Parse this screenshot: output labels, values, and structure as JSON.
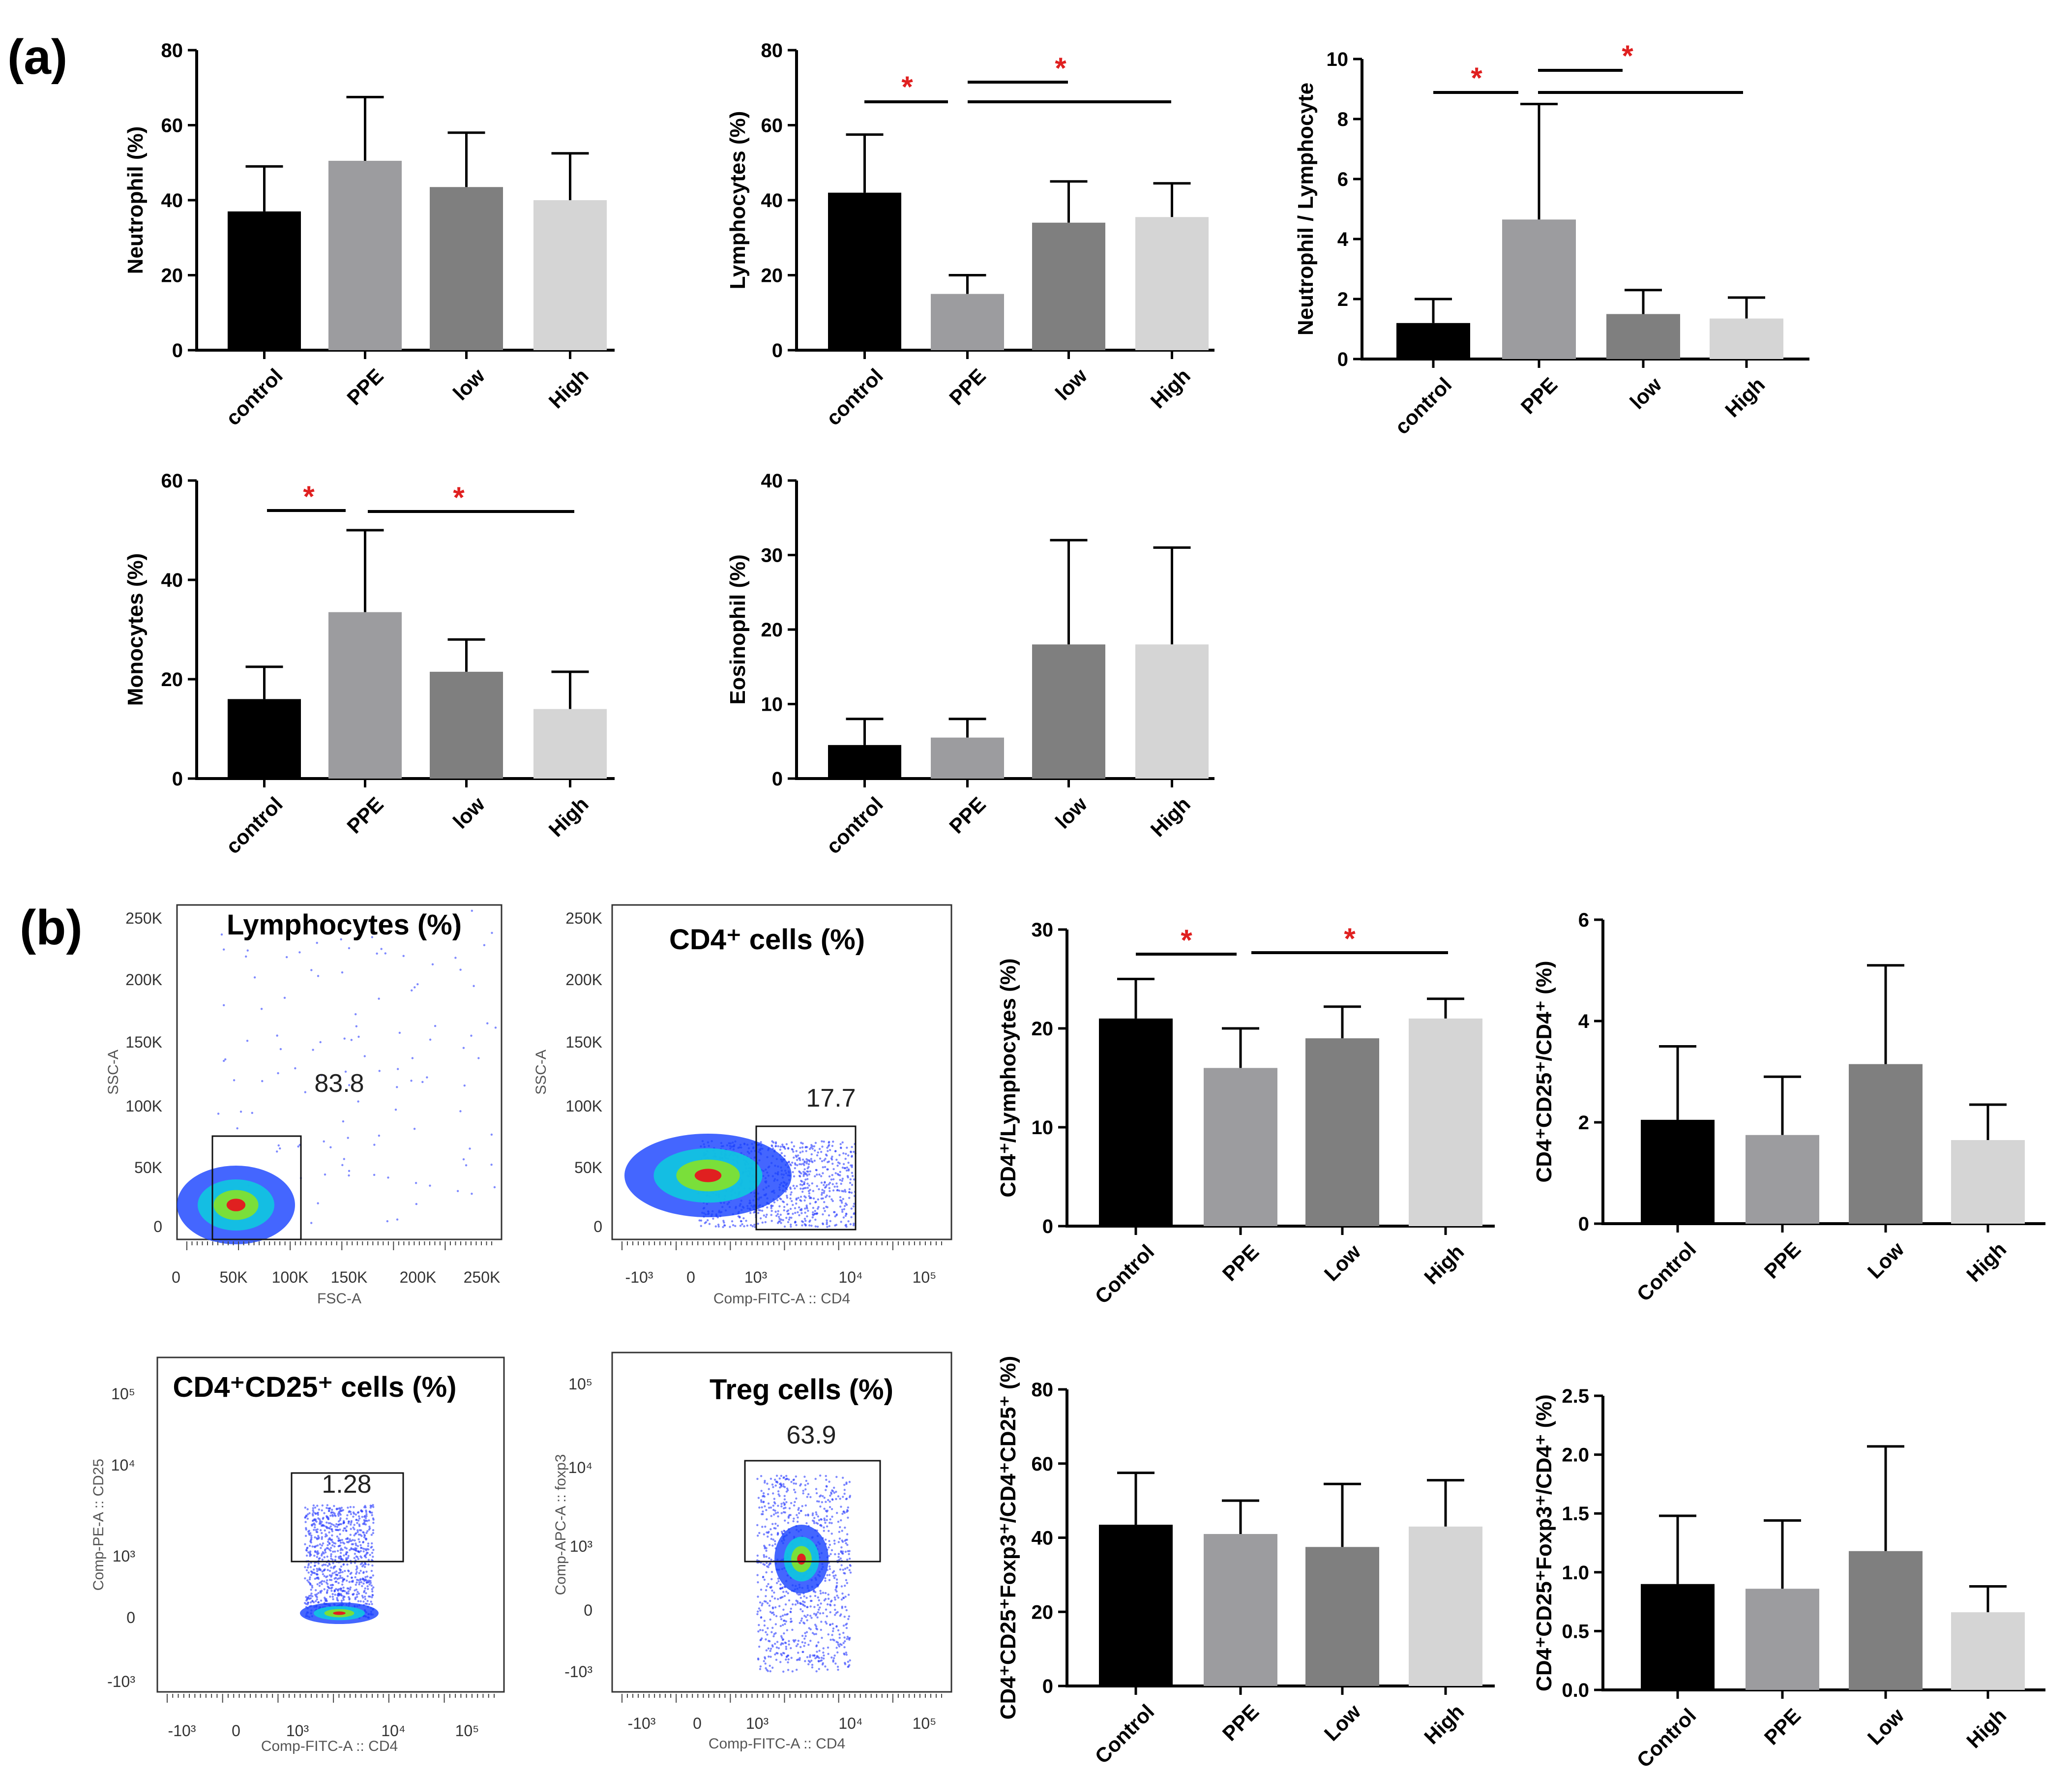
{
  "panel_labels": {
    "a": "(a)",
    "b": "(b)"
  },
  "colors": {
    "control": "#000000",
    "PPE": "#9c9c9f",
    "low": "#7f7f7f",
    "High": "#d5d5d5",
    "star": "#e02020"
  },
  "chart_data": [
    {
      "id": "neutrophil",
      "type": "bar",
      "ylabel": "Neutrophil (%)",
      "categories": [
        "control",
        "PPE",
        "low",
        "High"
      ],
      "values": [
        37,
        50.5,
        43.5,
        40
      ],
      "errors": [
        12,
        17,
        14.5,
        12.5
      ],
      "ylim": [
        0,
        80
      ],
      "yticks": [
        "0",
        "20",
        "40",
        "60",
        "80"
      ],
      "signif": []
    },
    {
      "id": "lymphocytes",
      "type": "bar",
      "ylabel": "Lymphocytes (%)",
      "categories": [
        "control",
        "PPE",
        "low",
        "High"
      ],
      "values": [
        42,
        15,
        34,
        35.5
      ],
      "errors": [
        15.5,
        5,
        11,
        9
      ],
      "ylim": [
        0,
        80
      ],
      "yticks": [
        "0",
        "20",
        "40",
        "60",
        "80"
      ],
      "signif": [
        {
          "label": "*"
        },
        {
          "label": "*"
        }
      ]
    },
    {
      "id": "nl_ratio",
      "type": "bar",
      "ylabel": "Neutrophil / Lymphocyte",
      "categories": [
        "control",
        "PPE",
        "low",
        "High"
      ],
      "values": [
        1.2,
        4.65,
        1.5,
        1.35
      ],
      "errors": [
        0.8,
        3.85,
        0.8,
        0.7
      ],
      "ylim": [
        0,
        10
      ],
      "yticks": [
        "0",
        "2",
        "4",
        "6",
        "8",
        "10"
      ],
      "signif": [
        {
          "label": "*"
        },
        {
          "label": "*"
        }
      ]
    },
    {
      "id": "monocytes",
      "type": "bar",
      "ylabel": "Monocytes (%)",
      "categories": [
        "control",
        "PPE",
        "low",
        "High"
      ],
      "values": [
        16,
        33.5,
        21.5,
        14
      ],
      "errors": [
        6.5,
        16.5,
        6.5,
        7.5
      ],
      "ylim": [
        0,
        60
      ],
      "yticks": [
        "0",
        "20",
        "40",
        "60"
      ],
      "signif": [
        {
          "label": "*"
        },
        {
          "label": "*"
        }
      ]
    },
    {
      "id": "eosinophil",
      "type": "bar",
      "ylabel": "Eosinophil (%)",
      "categories": [
        "control",
        "PPE",
        "low",
        "High"
      ],
      "values": [
        4.5,
        5.5,
        18,
        18
      ],
      "errors": [
        3.5,
        2.5,
        14,
        13
      ],
      "ylim": [
        0,
        40
      ],
      "yticks": [
        "0",
        "10",
        "20",
        "30",
        "40"
      ],
      "signif": []
    },
    {
      "id": "cd4_lymph",
      "type": "bar",
      "ylabel": "CD4⁺/Lymphocytes (%)",
      "categories": [
        "Control",
        "PPE",
        "Low",
        "High"
      ],
      "values": [
        21,
        16,
        19,
        21
      ],
      "errors": [
        4,
        4,
        3.2,
        2
      ],
      "ylim": [
        0,
        30
      ],
      "yticks": [
        "0",
        "10",
        "20",
        "30"
      ],
      "signif": [
        {
          "label": "*"
        },
        {
          "label": "*"
        }
      ]
    },
    {
      "id": "cd25_cd4",
      "type": "bar",
      "ylabel": "CD4⁺CD25⁺/CD4⁺ (%)",
      "categories": [
        "Control",
        "PPE",
        "Low",
        "High"
      ],
      "values": [
        2.05,
        1.75,
        3.15,
        1.65
      ],
      "errors": [
        1.45,
        1.15,
        1.95,
        0.7
      ],
      "ylim": [
        0,
        6
      ],
      "yticks": [
        "0",
        "2",
        "4",
        "6"
      ],
      "signif": []
    },
    {
      "id": "foxp3_cd25",
      "type": "bar",
      "ylabel": "CD4⁺CD25⁺Foxp3⁺/CD4⁺CD25⁺ (%)",
      "categories": [
        "Control",
        "PPE",
        "Low",
        "High"
      ],
      "values": [
        43.5,
        41,
        37.5,
        43
      ],
      "errors": [
        14,
        9,
        17,
        12.5
      ],
      "ylim": [
        0,
        80
      ],
      "yticks": [
        "0",
        "20",
        "40",
        "60",
        "80"
      ],
      "signif": []
    },
    {
      "id": "foxp3_cd4",
      "type": "bar",
      "ylabel": "CD4⁺CD25⁺Foxp3⁺/CD4⁺ (%)",
      "categories": [
        "Control",
        "PPE",
        "Low",
        "High"
      ],
      "values": [
        0.9,
        0.86,
        1.18,
        0.66
      ],
      "errors": [
        0.58,
        0.58,
        0.89,
        0.22
      ],
      "ylim": [
        0,
        2.5
      ],
      "yticks": [
        "0.0",
        "0.5",
        "1.0",
        "1.5",
        "2.0",
        "2.5"
      ],
      "signif": []
    }
  ],
  "flow_plots": [
    {
      "id": "fc_lymph",
      "title": "Lymphocytes (%)",
      "gate_value": "83.8",
      "xlabel": "FSC-A",
      "ylabel": "SSC-A",
      "xticks": [
        "0",
        "50K",
        "100K",
        "150K",
        "200K",
        "250K"
      ],
      "yticks": [
        "0",
        "50K",
        "100K",
        "150K",
        "200K",
        "250K"
      ]
    },
    {
      "id": "fc_cd4",
      "title": "CD4⁺ cells (%)",
      "gate_value": "17.7",
      "xlabel": "Comp-FITC-A :: CD4",
      "ylabel": "SSC-A",
      "xticks": [
        "-10³",
        "0",
        "10³",
        "10⁴",
        "10⁵"
      ],
      "yticks": [
        "0",
        "50K",
        "100K",
        "150K",
        "200K",
        "250K"
      ]
    },
    {
      "id": "fc_cd25",
      "title": "CD4⁺CD25⁺ cells (%)",
      "gate_value": "1.28",
      "xlabel": "Comp-FITC-A :: CD4",
      "ylabel": "Comp-PE-A :: CD25",
      "xticks": [
        "-10³",
        "0",
        "10³",
        "10⁴",
        "10⁵"
      ],
      "yticks": [
        "-10³",
        "0",
        "10³",
        "10⁴",
        "10⁵"
      ]
    },
    {
      "id": "fc_treg",
      "title": "Treg cells (%)",
      "gate_value": "63.9",
      "xlabel": "Comp-FITC-A :: CD4",
      "ylabel": "Comp-APC-A :: foxp3",
      "xticks": [
        "-10³",
        "0",
        "10³",
        "10⁴",
        "10⁵"
      ],
      "yticks": [
        "-10³",
        "0",
        "10³",
        "10⁴",
        "10⁵"
      ]
    }
  ]
}
